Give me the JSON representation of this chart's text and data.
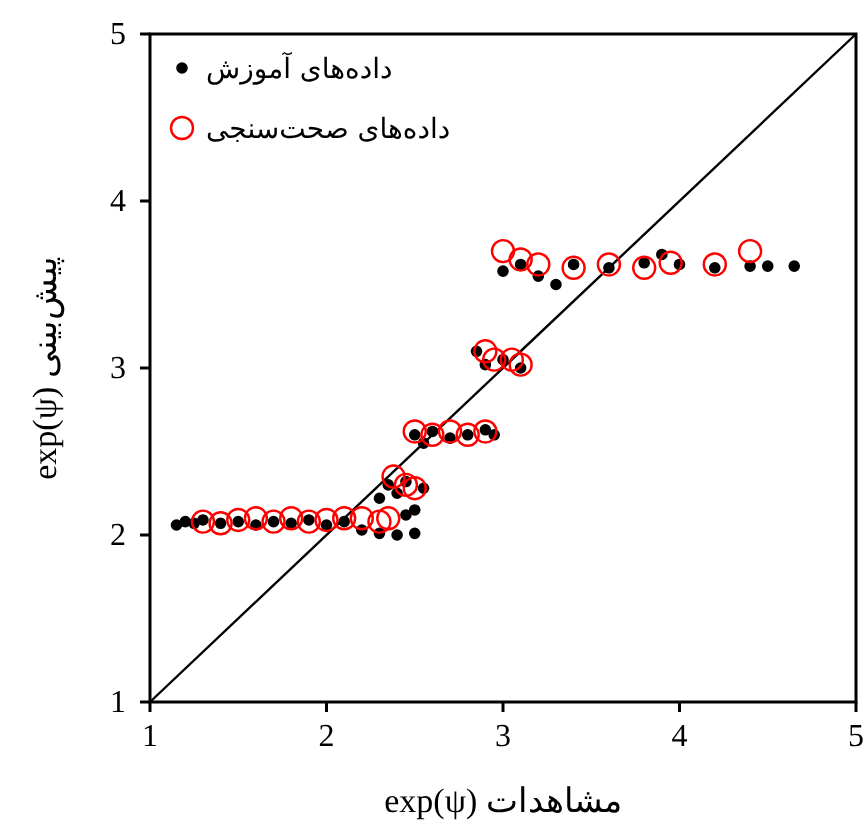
{
  "chart_data": {
    "type": "scatter",
    "xlabel": "مشاهدات exp(ψ)",
    "ylabel": "پیش‌بینی exp(ψ)",
    "xlim": [
      1,
      5
    ],
    "ylim": [
      1,
      5
    ],
    "xticks": [
      1,
      2,
      3,
      4,
      5
    ],
    "yticks": [
      1,
      2,
      3,
      4,
      5
    ],
    "grid": false,
    "legend": "top left",
    "series": [
      {
        "name": "داده‌های آموزش",
        "color": "#000000",
        "marker": "circle",
        "x": [
          1.15,
          1.2,
          1.25,
          1.3,
          1.4,
          1.5,
          1.6,
          1.7,
          1.8,
          1.9,
          2.0,
          2.1,
          2.2,
          2.3,
          2.4,
          2.5,
          2.45,
          2.5,
          2.3,
          2.35,
          2.4,
          2.45,
          2.55,
          2.5,
          2.55,
          2.6,
          2.7,
          2.8,
          2.9,
          2.95,
          2.85,
          2.9,
          3.0,
          3.1,
          3.0,
          3.1,
          3.2,
          3.3,
          3.4,
          3.6,
          3.8,
          3.9,
          4.0,
          4.2,
          4.4,
          4.5,
          4.65
        ],
        "values": [
          2.06,
          2.08,
          2.07,
          2.09,
          2.07,
          2.08,
          2.06,
          2.08,
          2.07,
          2.09,
          2.06,
          2.08,
          2.03,
          2.01,
          2.0,
          2.01,
          2.12,
          2.15,
          2.22,
          2.3,
          2.25,
          2.32,
          2.28,
          2.6,
          2.55,
          2.62,
          2.58,
          2.6,
          2.63,
          2.6,
          3.1,
          3.02,
          3.05,
          3.0,
          3.58,
          3.62,
          3.55,
          3.5,
          3.62,
          3.6,
          3.63,
          3.68,
          3.62,
          3.6,
          3.61,
          3.61,
          3.61
        ]
      },
      {
        "name": "داده‌های صحت‌سنجی",
        "color": "#ff0000",
        "marker": "circle",
        "x": [
          1.3,
          1.4,
          1.5,
          1.6,
          1.7,
          1.8,
          1.9,
          2.0,
          2.1,
          2.2,
          2.3,
          2.35,
          2.38,
          2.45,
          2.5,
          2.5,
          2.6,
          2.7,
          2.8,
          2.9,
          2.9,
          2.95,
          3.05,
          3.1,
          3.0,
          3.1,
          3.2,
          3.4,
          3.6,
          3.8,
          3.95,
          4.2,
          4.4
        ],
        "values": [
          2.08,
          2.07,
          2.09,
          2.1,
          2.08,
          2.1,
          2.08,
          2.09,
          2.1,
          2.1,
          2.08,
          2.1,
          2.35,
          2.3,
          2.28,
          2.62,
          2.6,
          2.62,
          2.6,
          2.62,
          3.1,
          3.05,
          3.05,
          3.02,
          3.7,
          3.65,
          3.62,
          3.6,
          3.62,
          3.6,
          3.63,
          3.62,
          3.7
        ]
      },
      {
        "type": "line",
        "color": "#000000",
        "marker": "none",
        "x": [
          1,
          5
        ],
        "values": [
          1,
          5
        ]
      }
    ]
  }
}
